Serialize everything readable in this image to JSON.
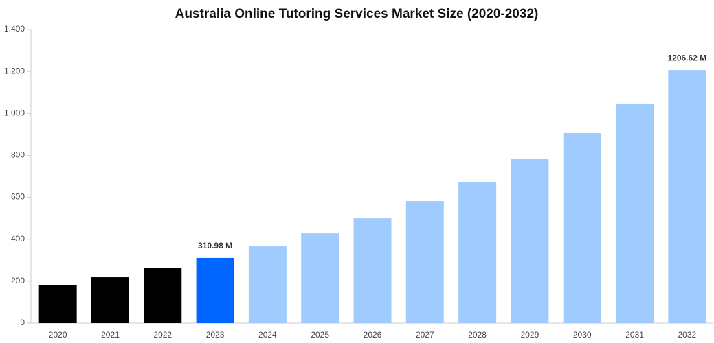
{
  "chart_data": {
    "type": "bar",
    "title": "Australia Online Tutoring Services Market Size (2020-2032)",
    "categories": [
      "2020",
      "2021",
      "2022",
      "2023",
      "2024",
      "2025",
      "2026",
      "2027",
      "2028",
      "2029",
      "2030",
      "2031",
      "2032"
    ],
    "values": [
      180,
      219,
      262,
      310.98,
      366,
      428,
      500,
      582,
      674,
      782,
      906,
      1047,
      1206.62
    ],
    "value_labels": [
      null,
      null,
      null,
      "310.98 M",
      null,
      null,
      null,
      null,
      null,
      null,
      null,
      null,
      "1206.62 M"
    ],
    "colors": [
      "#000000",
      "#000000",
      "#000000",
      "#0066ff",
      "#a0cbff",
      "#a0cbff",
      "#a0cbff",
      "#a0cbff",
      "#a0cbff",
      "#a0cbff",
      "#a0cbff",
      "#a0cbff",
      "#a0cbff"
    ],
    "ylim": [
      0,
      1400
    ],
    "yticks": [
      0,
      200,
      400,
      600,
      800,
      {
        "value": 1000,
        "label": "1,000"
      },
      {
        "value": 1200,
        "label": "1,200"
      },
      {
        "value": 1400,
        "label": "1,400"
      }
    ],
    "grid": false
  }
}
